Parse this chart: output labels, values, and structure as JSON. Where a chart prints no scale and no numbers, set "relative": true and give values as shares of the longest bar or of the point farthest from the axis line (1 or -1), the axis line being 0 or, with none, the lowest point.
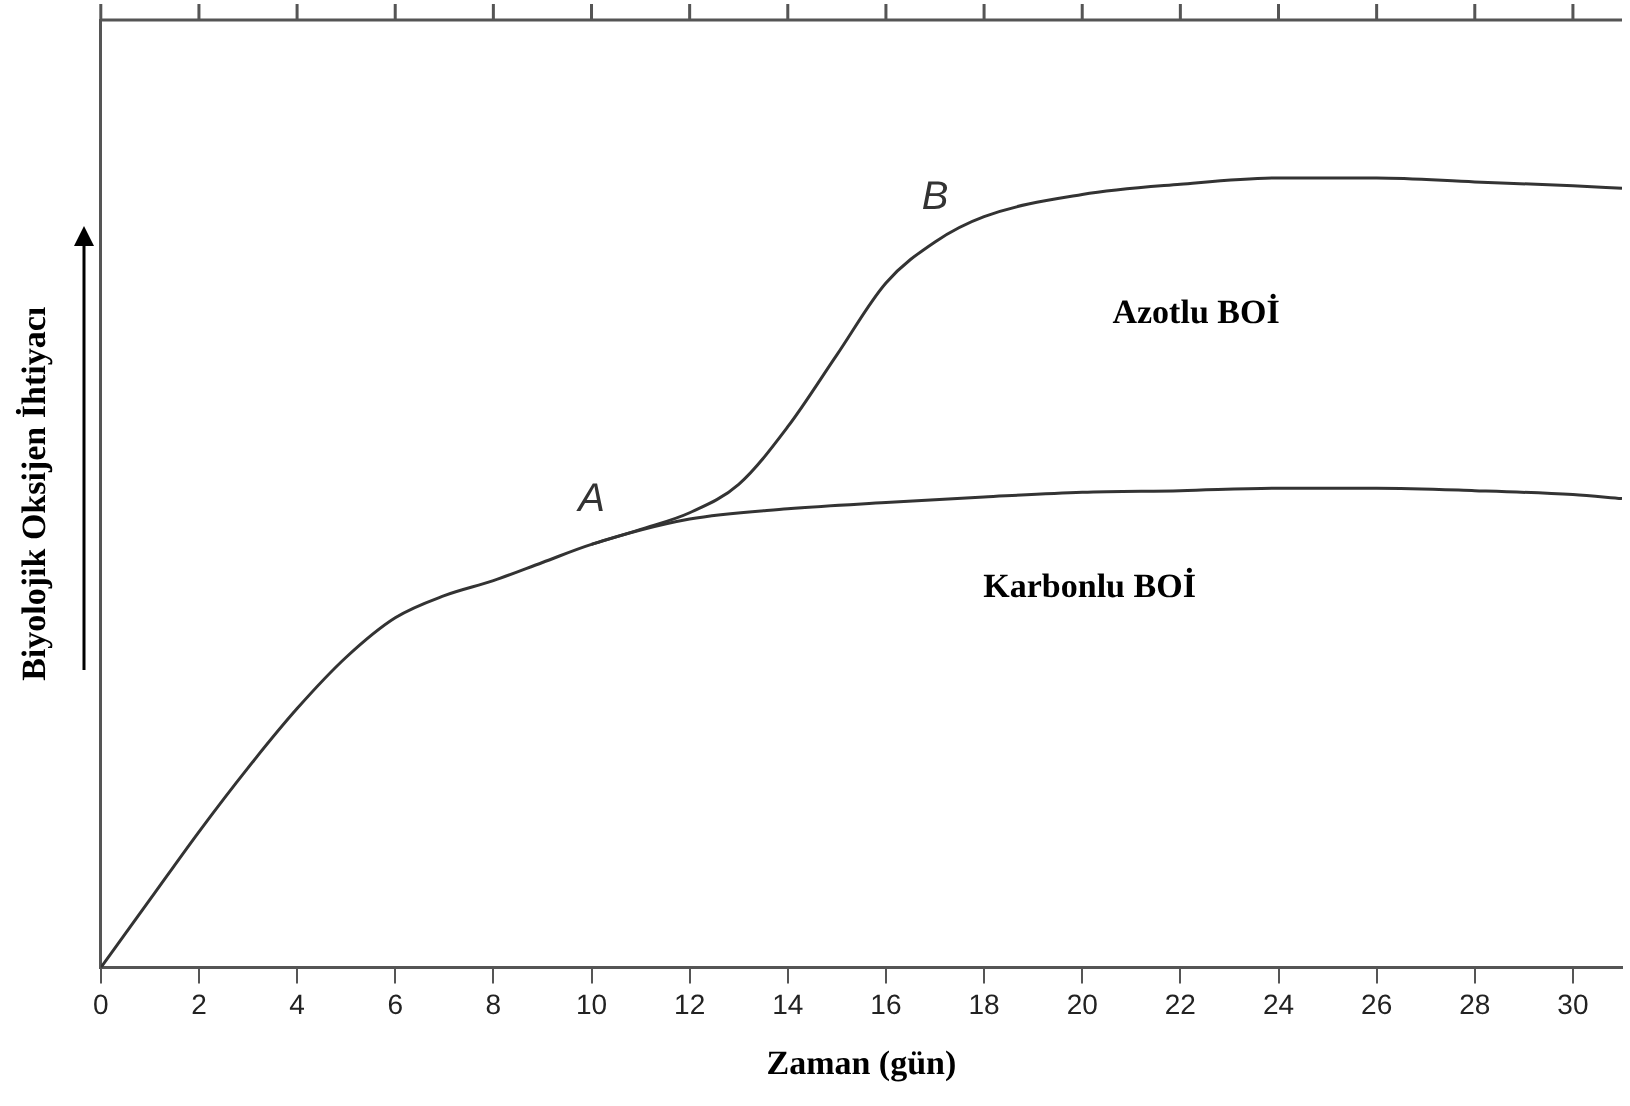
{
  "chart_data": {
    "type": "line",
    "xlabel": "Zaman (gün)",
    "ylabel": "Biyolojik Oksijen İhtiyacı",
    "relative": true,
    "xlim": [
      0,
      31
    ],
    "xticks": [
      0,
      2,
      4,
      6,
      8,
      10,
      12,
      14,
      16,
      18,
      20,
      22,
      24,
      26,
      28,
      30
    ],
    "tick_labels": "x",
    "grid": false,
    "legend": false,
    "marker": "none",
    "line_style": "solid",
    "series": [
      {
        "name": "A",
        "color": "#333333",
        "x": [
          0,
          1,
          2,
          3,
          4,
          5,
          6,
          7,
          8,
          9,
          10,
          12,
          14,
          16,
          18,
          20,
          22,
          24,
          26,
          28,
          30,
          31
        ],
        "values": [
          0,
          0.086,
          0.172,
          0.253,
          0.328,
          0.393,
          0.443,
          0.471,
          0.49,
          0.513,
          0.536,
          0.568,
          0.581,
          0.589,
          0.596,
          0.602,
          0.604,
          0.607,
          0.607,
          0.604,
          0.599,
          0.594
        ]
      },
      {
        "name": "B",
        "color": "#333333",
        "x": [
          10,
          11,
          12,
          13,
          14,
          15,
          16,
          17,
          18,
          20,
          22,
          24,
          26,
          28,
          30,
          31
        ],
        "values": [
          0.536,
          0.555,
          0.576,
          0.612,
          0.685,
          0.776,
          0.867,
          0.919,
          0.951,
          0.979,
          0.992,
          1,
          1,
          0.995,
          0.99,
          0.987
        ]
      }
    ],
    "annotations": [
      "Azotlu BOİ",
      "Karbonlu BOİ"
    ]
  }
}
